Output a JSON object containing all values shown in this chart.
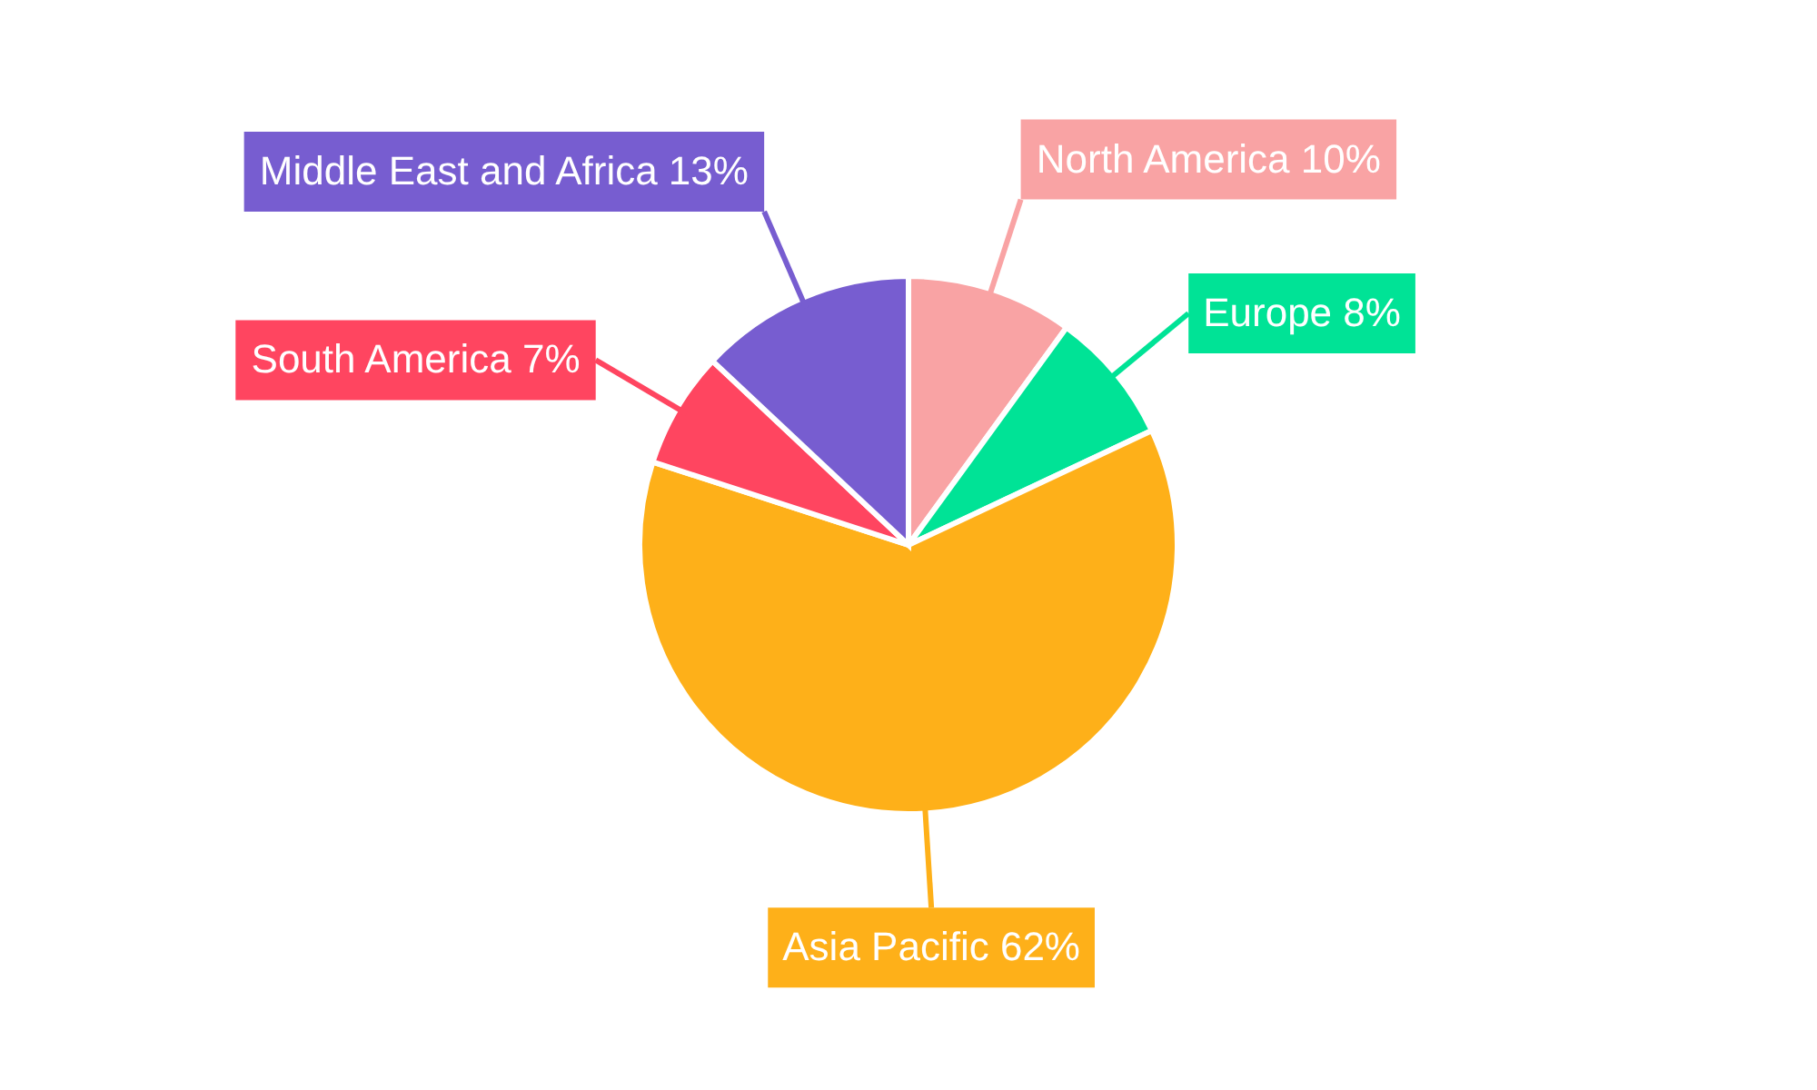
{
  "chart_data": {
    "type": "pie",
    "categories": [
      "North America",
      "Europe",
      "Asia Pacific",
      "South America",
      "Middle East and Africa"
    ],
    "values": [
      10,
      8,
      62,
      7,
      13
    ],
    "colors": [
      "#f9a3a4",
      "#00e396",
      "#feb019",
      "#ff4560",
      "#775dd0"
    ],
    "value_labels": [
      "10%",
      "8%",
      "62%",
      "7%",
      "13%"
    ]
  }
}
